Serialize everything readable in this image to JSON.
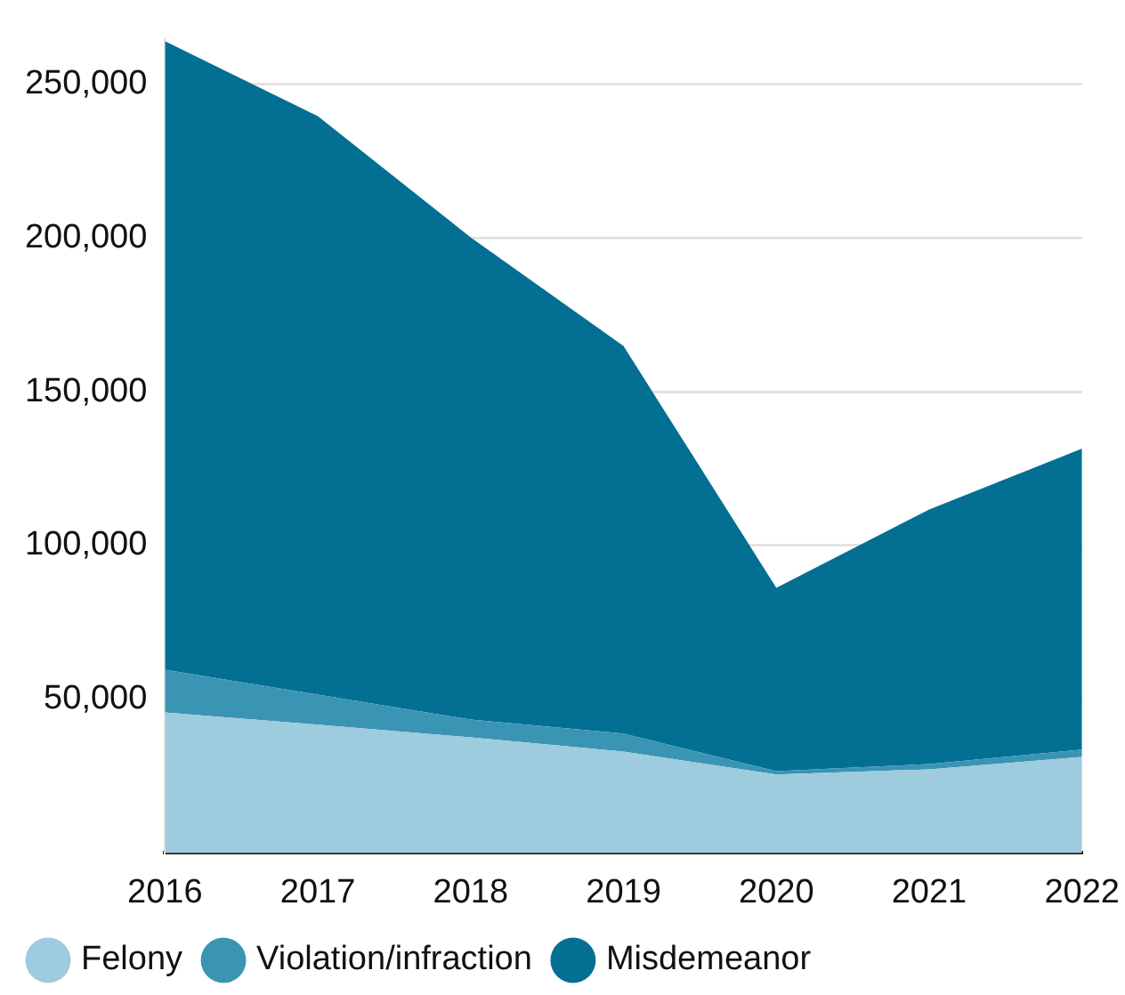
{
  "chart_data": {
    "type": "area",
    "stacked": true,
    "categories": [
      "2016",
      "2017",
      "2018",
      "2019",
      "2020",
      "2021",
      "2022"
    ],
    "series": [
      {
        "name": "Felony",
        "color": "#9ecbdd",
        "values": [
          45700,
          41700,
          37600,
          33000,
          25500,
          27200,
          31200
        ]
      },
      {
        "name": "Violation/infraction",
        "color": "#3a94b4",
        "values": [
          13900,
          9800,
          5800,
          5800,
          1100,
          1700,
          2400
        ]
      },
      {
        "name": "Misdemeanor",
        "color": "#036f93",
        "values": [
          204400,
          188100,
          156800,
          126100,
          59600,
          82800,
          97900
        ]
      }
    ],
    "ylim": [
      0,
      265000
    ],
    "yticks": [
      {
        "value": 50000,
        "label": "50,000"
      },
      {
        "value": 100000,
        "label": "100,000"
      },
      {
        "value": 150000,
        "label": "150,000"
      },
      {
        "value": 200000,
        "label": "200,000"
      },
      {
        "value": 250000,
        "label": "250,000"
      }
    ],
    "grid": "y",
    "legend": "bottom",
    "marker": "none"
  }
}
